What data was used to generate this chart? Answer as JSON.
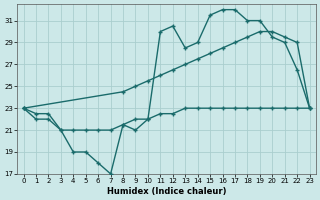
{
  "xlabel": "Humidex (Indice chaleur)",
  "bg_color": "#cce8e8",
  "grid_color": "#aacece",
  "line_color": "#1a6b6b",
  "xlim": [
    -0.5,
    23.5
  ],
  "ylim": [
    17,
    32.5
  ],
  "xticks": [
    0,
    1,
    2,
    3,
    4,
    5,
    6,
    7,
    8,
    9,
    10,
    11,
    12,
    13,
    14,
    15,
    16,
    17,
    18,
    19,
    20,
    21,
    22,
    23
  ],
  "yticks": [
    17,
    19,
    21,
    23,
    25,
    27,
    29,
    31
  ],
  "line1_x": [
    0,
    1,
    2,
    3,
    4,
    5,
    6,
    7,
    8,
    9,
    10,
    11,
    12,
    13,
    14,
    15,
    16,
    17,
    18,
    19,
    20,
    21,
    22,
    23
  ],
  "line1_y": [
    23,
    22.5,
    22.5,
    21,
    19,
    19,
    18,
    17,
    21.5,
    21,
    22,
    30,
    30.5,
    28.5,
    29,
    31.5,
    32,
    32,
    31,
    31,
    29.5,
    29,
    26.5,
    23
  ],
  "line2_x": [
    0,
    8,
    9,
    10,
    11,
    12,
    13,
    14,
    15,
    16,
    17,
    18,
    19,
    20,
    21,
    22,
    23
  ],
  "line2_y": [
    23,
    24.5,
    25,
    25.5,
    26,
    26.5,
    27,
    27.5,
    28,
    28.5,
    29,
    29.5,
    30,
    30,
    29.5,
    29,
    23
  ],
  "line3_x": [
    0,
    1,
    2,
    3,
    4,
    5,
    6,
    7,
    8,
    9,
    10,
    11,
    12,
    13,
    14,
    15,
    16,
    17,
    18,
    19,
    20,
    21,
    22,
    23
  ],
  "line3_y": [
    23,
    22,
    22,
    21,
    21,
    21,
    21,
    21,
    21.5,
    22,
    22,
    22.5,
    22.5,
    23,
    23,
    23,
    23,
    23,
    23,
    23,
    23,
    23,
    23,
    23
  ]
}
